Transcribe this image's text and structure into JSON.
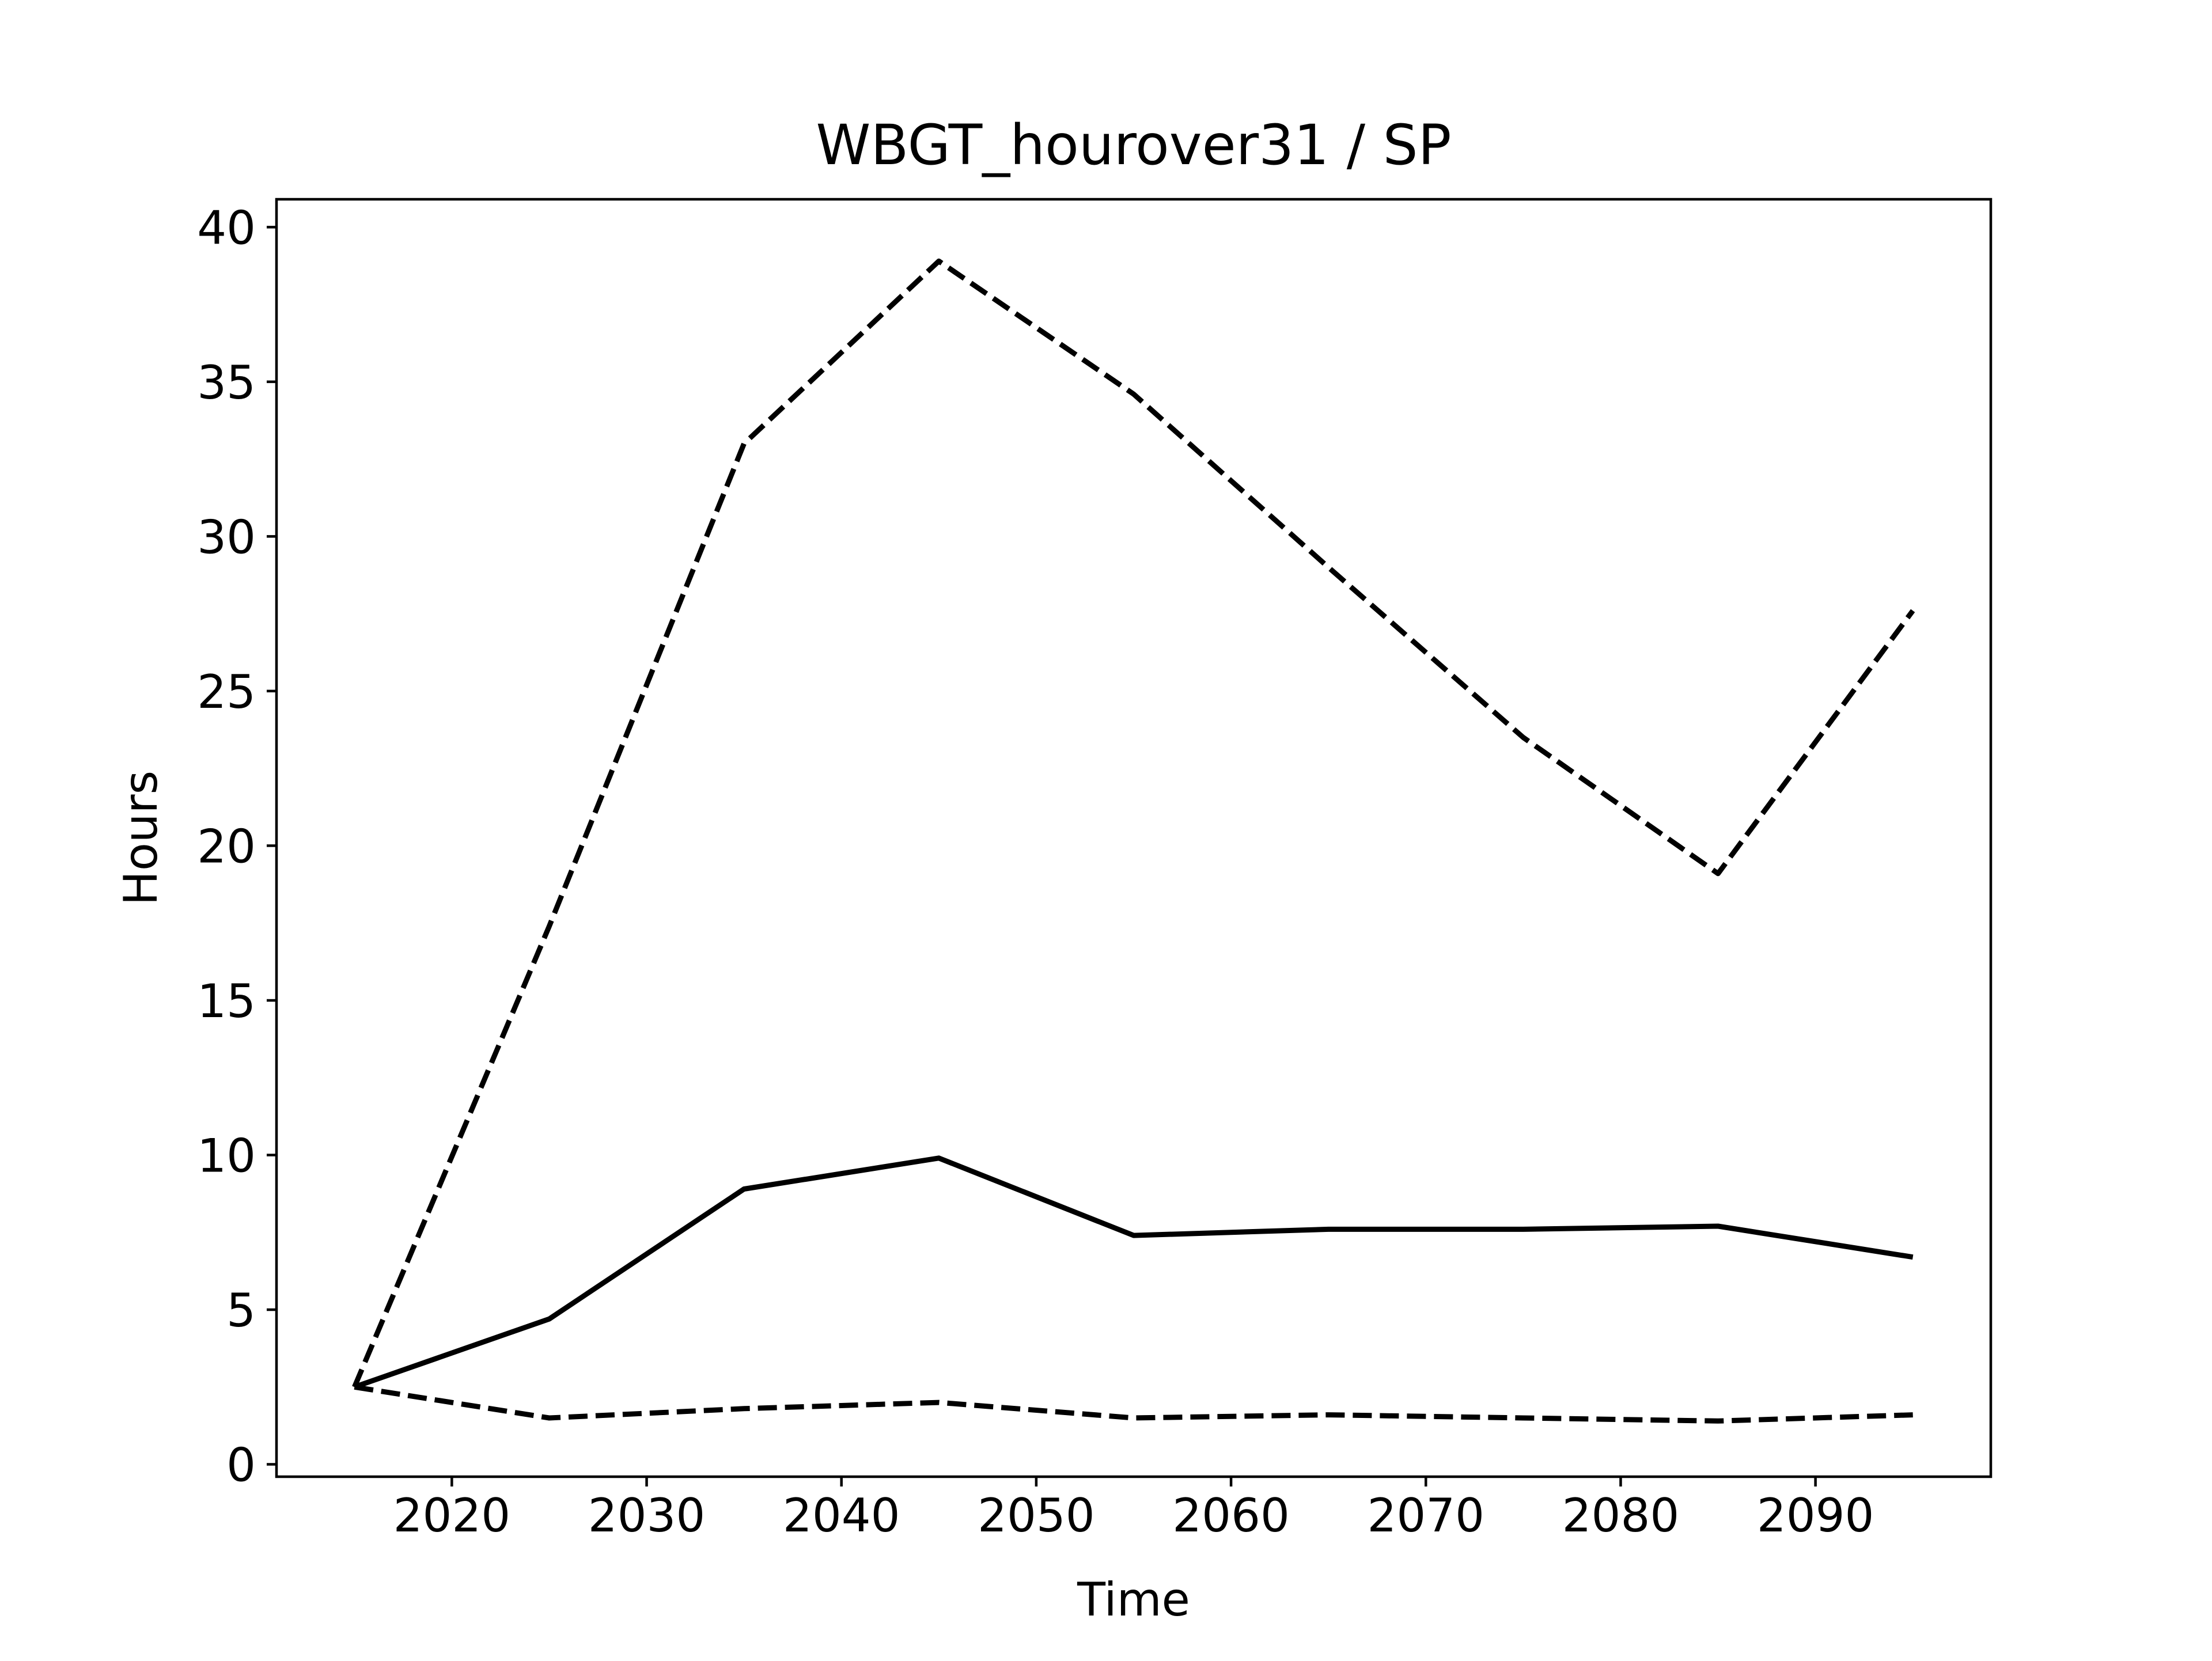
{
  "chart_data": {
    "type": "line",
    "title": "WBGT_hourover31 / SP",
    "xlabel": "Time",
    "ylabel": "Hours",
    "xlim": [
      2011,
      2099
    ],
    "ylim": [
      -0.4,
      40.9
    ],
    "xticks": [
      2020,
      2030,
      2040,
      2050,
      2060,
      2070,
      2080,
      2090
    ],
    "yticks": [
      0,
      5,
      10,
      15,
      20,
      25,
      30,
      35,
      40
    ],
    "grid": false,
    "legend": "none",
    "x": [
      2015,
      2025,
      2035,
      2045,
      2055,
      2065,
      2075,
      2085,
      2095
    ],
    "series": [
      {
        "style": "solid",
        "color": "#000000",
        "values": [
          2.5,
          4.7,
          8.9,
          9.9,
          7.4,
          7.6,
          7.6,
          7.7,
          6.7
        ]
      },
      {
        "style": "dashed",
        "color": "#000000",
        "values": [
          2.5,
          17.4,
          33.0,
          38.9,
          34.6,
          29.0,
          23.5,
          19.1,
          27.6
        ]
      },
      {
        "style": "dashed",
        "color": "#000000",
        "values": [
          2.5,
          1.5,
          1.8,
          2.0,
          1.5,
          1.6,
          1.5,
          1.4,
          1.6
        ]
      }
    ]
  }
}
